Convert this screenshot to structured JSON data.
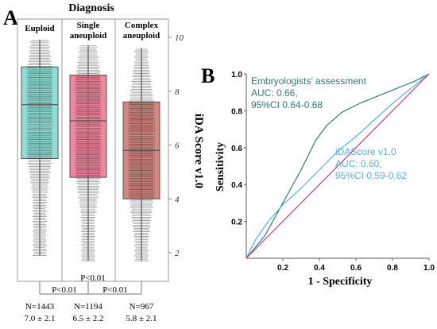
{
  "panel_a_label": "A",
  "panel_b_label": "B",
  "chart_data": [
    {
      "type": "box",
      "title": "Diagnosis",
      "ylabel": "iDA Score v1.0",
      "ylim": [
        1.5,
        10.5
      ],
      "yticks": [
        2,
        4,
        6,
        8,
        10
      ],
      "groups": [
        {
          "name": "Euploid",
          "min": 1.9,
          "q1": 5.5,
          "median": 7.5,
          "q3": 8.9,
          "max": 9.9,
          "color": "#6fd3c6",
          "n_label": "N=1443",
          "mean_label": "7.0 ± 2.1"
        },
        {
          "name": "Single aneuploid",
          "min": 1.7,
          "q1": 4.8,
          "median": 6.9,
          "q3": 8.6,
          "max": 9.7,
          "color": "#e8607f",
          "n_label": "N=1194",
          "mean_label": "6.5 ± 2.2"
        },
        {
          "name": "Complex aneuploid",
          "min": 1.7,
          "q1": 4.0,
          "median": 5.8,
          "q3": 7.6,
          "max": 9.6,
          "color": "#c1605a",
          "n_label": "N=967",
          "mean_label": "5.8 ± 2.1"
        }
      ],
      "comparisons": [
        {
          "label": "P<0.01",
          "between": [
            0,
            2
          ]
        },
        {
          "label": "P<0.01",
          "between": [
            0,
            1
          ]
        },
        {
          "label": "P<0.01",
          "between": [
            1,
            2
          ]
        }
      ]
    },
    {
      "type": "line",
      "xlabel": "1 - Specificity",
      "ylabel": "Sensitivity",
      "xlim": [
        0,
        1
      ],
      "ylim": [
        0,
        1
      ],
      "ticks": [
        0.2,
        0.4,
        0.6,
        0.8,
        1.0
      ],
      "tick_labels": [
        "0.2",
        "0.4",
        "0.6",
        "0.8",
        "1.0"
      ],
      "series": [
        {
          "name": "Embryologists’ assessment",
          "auc_label": "AUC: 0.66,",
          "ci_label": "95%CI 0.64-0.68",
          "color": "#2e7d6e",
          "x": [
            0,
            0.1,
            0.2,
            0.3,
            0.38,
            0.44,
            0.52,
            0.62,
            0.72,
            0.82,
            0.92,
            1.0
          ],
          "y": [
            0,
            0.12,
            0.3,
            0.48,
            0.64,
            0.72,
            0.79,
            0.84,
            0.88,
            0.92,
            0.96,
            1.0
          ]
        },
        {
          "name": "iDAScore v1.0",
          "auc_label": "AUC: 0.60,",
          "ci_label": "95%CI 0.59-0.62",
          "color": "#5aaee6",
          "x": [
            0,
            0.05,
            0.12,
            0.2,
            0.3,
            0.4,
            0.5,
            0.6,
            0.7,
            0.8,
            0.9,
            1.0
          ],
          "y": [
            0,
            0.1,
            0.2,
            0.29,
            0.38,
            0.48,
            0.58,
            0.66,
            0.75,
            0.84,
            0.92,
            1.0
          ]
        },
        {
          "name": "",
          "color": "#c2417a",
          "x": [
            0,
            1
          ],
          "y": [
            0,
            1
          ]
        }
      ]
    }
  ]
}
